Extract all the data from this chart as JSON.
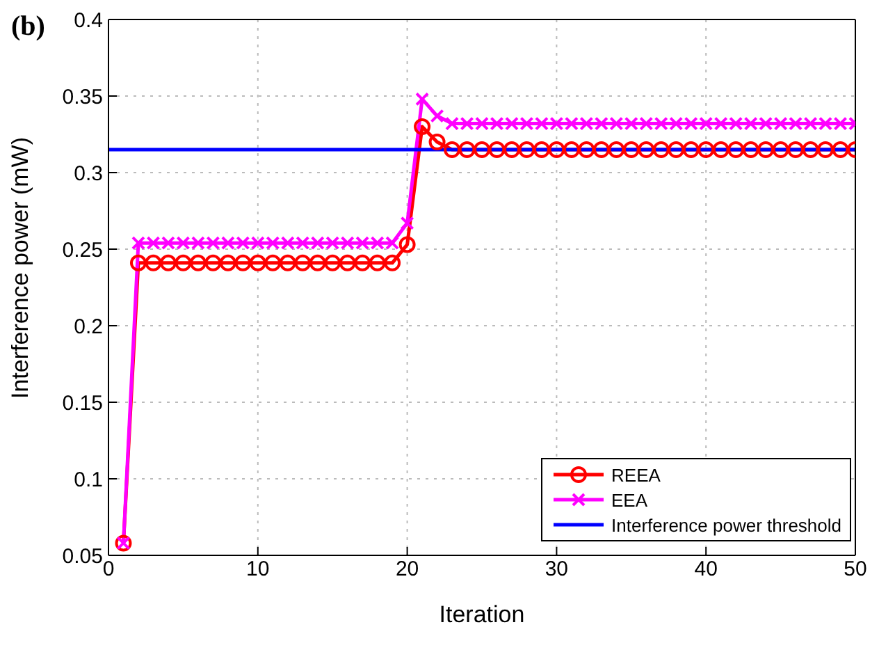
{
  "chart_data": {
    "type": "line",
    "annotations": [
      "(b)"
    ],
    "xlabel": "Iteration",
    "ylabel": "Interference power (mW)",
    "series": [
      {
        "name": "REEA",
        "color": "#ff0000",
        "marker": "circle",
        "x": [
          1,
          2,
          3,
          4,
          5,
          6,
          7,
          8,
          9,
          10,
          11,
          12,
          13,
          14,
          15,
          16,
          17,
          18,
          19,
          20,
          21,
          22,
          23,
          24,
          25,
          26,
          27,
          28,
          29,
          30,
          31,
          32,
          33,
          34,
          35,
          36,
          37,
          38,
          39,
          40,
          41,
          42,
          43,
          44,
          45,
          46,
          47,
          48,
          49,
          50
        ],
        "values": [
          0.058,
          0.241,
          0.241,
          0.241,
          0.241,
          0.241,
          0.241,
          0.241,
          0.241,
          0.241,
          0.241,
          0.241,
          0.241,
          0.241,
          0.241,
          0.241,
          0.241,
          0.241,
          0.241,
          0.253,
          0.33,
          0.32,
          0.315,
          0.315,
          0.315,
          0.315,
          0.315,
          0.315,
          0.315,
          0.315,
          0.315,
          0.315,
          0.315,
          0.315,
          0.315,
          0.315,
          0.315,
          0.315,
          0.315,
          0.315,
          0.315,
          0.315,
          0.315,
          0.315,
          0.315,
          0.315,
          0.315,
          0.315,
          0.315,
          0.315
        ]
      },
      {
        "name": "EEA",
        "color": "#ff00ff",
        "marker": "cross",
        "x": [
          1,
          2,
          3,
          4,
          5,
          6,
          7,
          8,
          9,
          10,
          11,
          12,
          13,
          14,
          15,
          16,
          17,
          18,
          19,
          20,
          21,
          22,
          23,
          24,
          25,
          26,
          27,
          28,
          29,
          30,
          31,
          32,
          33,
          34,
          35,
          36,
          37,
          38,
          39,
          40,
          41,
          42,
          43,
          44,
          45,
          46,
          47,
          48,
          49,
          50
        ],
        "values": [
          0.058,
          0.254,
          0.254,
          0.254,
          0.254,
          0.254,
          0.254,
          0.254,
          0.254,
          0.254,
          0.254,
          0.254,
          0.254,
          0.254,
          0.254,
          0.254,
          0.254,
          0.254,
          0.254,
          0.267,
          0.348,
          0.337,
          0.332,
          0.332,
          0.332,
          0.332,
          0.332,
          0.332,
          0.332,
          0.332,
          0.332,
          0.332,
          0.332,
          0.332,
          0.332,
          0.332,
          0.332,
          0.332,
          0.332,
          0.332,
          0.332,
          0.332,
          0.332,
          0.332,
          0.332,
          0.332,
          0.332,
          0.332,
          0.332,
          0.332
        ]
      },
      {
        "name": "Interference power threshold",
        "color": "#0000ff",
        "marker": "none",
        "x": [
          0,
          50
        ],
        "values": [
          0.315,
          0.315
        ]
      }
    ],
    "xlim": [
      0,
      50
    ],
    "xticks": [
      0,
      10,
      20,
      30,
      40,
      50
    ],
    "ylim": [
      0.05,
      0.4
    ],
    "yticks": [
      0.05,
      0.1,
      0.15,
      0.2,
      0.25,
      0.3,
      0.35,
      0.4
    ],
    "grid": true,
    "legend": "bottom right",
    "line_style": "solid"
  }
}
